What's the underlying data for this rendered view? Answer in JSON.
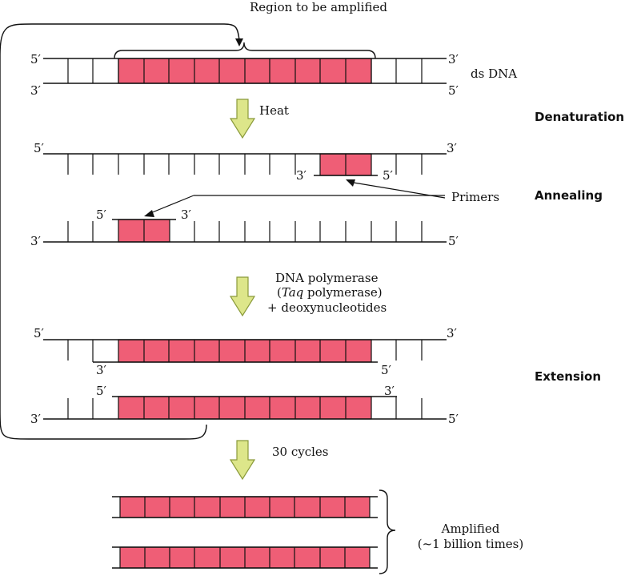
{
  "title": "Region to be amplified",
  "colors": {
    "amplified_fill": "#ef5e76",
    "arrow_fill": "#dde68a",
    "arrow_stroke": "#8a9a3a",
    "line": "#111111"
  },
  "labels": {
    "ds_dna": "ds DNA",
    "heat": "Heat",
    "primers": "Primers",
    "polymerase_line1": "DNA polymerase",
    "polymerase_line2_open": "(",
    "polymerase_line2_italic": "Taq",
    "polymerase_line2_rest": " polymerase)",
    "polymerase_line3": "+ deoxynucleotides",
    "cycles": "30 cycles",
    "amplified_line1": "Amplified",
    "amplified_line2": "(~1 billion times)"
  },
  "steps": {
    "denaturation": "Denaturation",
    "annealing": "Annealing",
    "extension": "Extension"
  },
  "ends": {
    "five_prime": "5′",
    "three_prime": "3′"
  }
}
